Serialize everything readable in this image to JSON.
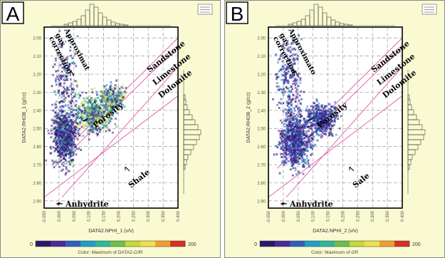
{
  "chart_data": [
    {
      "type": "scatter",
      "panel_letter": "A",
      "xlabel": "DATA2.NPHI_1 (v/v)",
      "ylabel": "DATA2.RHOB_1 (g/cc)",
      "xlim": [
        -0.05,
        0.4
      ],
      "ylim": [
        2.94,
        1.94
      ],
      "x_ticks": [
        -0.05,
        0.0,
        0.05,
        0.1,
        0.15,
        0.2,
        0.25,
        0.3,
        0.35,
        0.4
      ],
      "x_tick_labels": [
        "-0.050",
        "0.000",
        "0.050",
        "0.100",
        "0.150",
        "0.200",
        "0.250",
        "0.300",
        "0.350",
        "0.400"
      ],
      "y_ticks": [
        2.0,
        2.1,
        2.2,
        2.3,
        2.4,
        2.5,
        2.6,
        2.7,
        2.8,
        2.9
      ],
      "y_tick_labels": [
        "2.00",
        "2.10",
        "2.20",
        "2.30",
        "2.40",
        "2.50",
        "2.60",
        "2.70",
        "2.80",
        "2.90"
      ],
      "grid": true,
      "colorbar": {
        "min": 0,
        "max": 200,
        "min_label": "0",
        "max_label": "200",
        "title": "Color: Maximum of DATA2.C0R"
      },
      "lithology_lines": [
        "Sandstone",
        "Limestone",
        "Dolomite"
      ],
      "annotations": [
        "Approximate gas correction",
        "Porosity",
        "Shale",
        "Anhydrite"
      ],
      "approximate_gas_correction": "Approximat gas correction",
      "color_profile": "mixed",
      "clusters": [
        {
          "x": 0.02,
          "y": 2.55,
          "sx": 0.03,
          "sy": 0.1,
          "n": 700
        },
        {
          "x": 0.12,
          "y": 2.42,
          "sx": 0.045,
          "sy": 0.07,
          "n": 500
        },
        {
          "x": 0.18,
          "y": 2.33,
          "sx": 0.03,
          "sy": 0.05,
          "n": 250
        },
        {
          "x": 0.02,
          "y": 2.25,
          "sx": 0.03,
          "sy": 0.18,
          "n": 200
        }
      ]
    },
    {
      "type": "scatter",
      "panel_letter": "B",
      "xlabel": "DATA2.NPHI_2 (v/v)",
      "ylabel": "DATA2.RHOB_2 (g/cc)",
      "xlim": [
        -0.05,
        0.4
      ],
      "ylim": [
        2.94,
        1.94
      ],
      "x_ticks": [
        -0.05,
        0.0,
        0.05,
        0.1,
        0.15,
        0.2,
        0.25,
        0.3,
        0.35,
        0.4
      ],
      "x_tick_labels": [
        "-0.050",
        "0.000",
        "0.050",
        "0.100",
        "0.150",
        "0.200",
        "0.250",
        "0.300",
        "0.350",
        "0.400"
      ],
      "y_ticks": [
        2.0,
        2.1,
        2.2,
        2.3,
        2.4,
        2.5,
        2.6,
        2.7,
        2.8,
        2.9
      ],
      "y_tick_labels": [
        "2.00",
        "2.10",
        "2.20",
        "2.30",
        "2.40",
        "2.50",
        "2.60",
        "2.70",
        "2.80",
        "2.90"
      ],
      "grid": true,
      "colorbar": {
        "min": 0,
        "max": 200,
        "min_label": "0",
        "max_label": "200",
        "title": "Color: Maximum of GR"
      },
      "lithology_lines": [
        "Sandstone",
        "Limestone",
        "Dolomite"
      ],
      "annotations": [
        "Approximate gas correction",
        "Porosity",
        "Sale",
        "Anhydrite"
      ],
      "approximate_gas_correction": "Approximato gas correction",
      "color_profile": "cool",
      "clusters": [
        {
          "x": 0.04,
          "y": 2.57,
          "sx": 0.035,
          "sy": 0.1,
          "n": 750
        },
        {
          "x": 0.13,
          "y": 2.45,
          "sx": 0.035,
          "sy": 0.06,
          "n": 450
        },
        {
          "x": 0.02,
          "y": 2.25,
          "sx": 0.03,
          "sy": 0.18,
          "n": 250
        }
      ]
    }
  ],
  "colors": {
    "panel_bg": "#fafad2",
    "plot_bg": "#ffffff",
    "grid": "#9a9a9a",
    "lith_line": "#e05aa0",
    "scale": [
      "#2b1a6b",
      "#4b2a9b",
      "#2f5fc0",
      "#1fa0c8",
      "#2fb89a",
      "#6cc04a",
      "#c8d838",
      "#f0e050",
      "#f0a030",
      "#d83020"
    ]
  }
}
